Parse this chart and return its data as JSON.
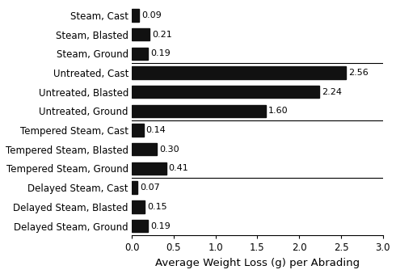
{
  "categories": [
    "Steam, Cast",
    "Steam, Blasted",
    "Steam, Ground",
    "Untreated, Cast",
    "Untreated, Blasted",
    "Untreated, Ground",
    "Tempered Steam, Cast",
    "Tempered Steam, Blasted",
    "Tempered Steam, Ground",
    "Delayed Steam, Cast",
    "Delayed Steam, Blasted",
    "Delayed Steam, Ground"
  ],
  "values": [
    0.09,
    0.21,
    0.19,
    2.56,
    2.24,
    1.6,
    0.14,
    0.3,
    0.41,
    0.07,
    0.15,
    0.19
  ],
  "bar_color": "#111111",
  "xlabel": "Average Weight Loss (g) per Abrading",
  "xlim": [
    0.0,
    3.0
  ],
  "xticks": [
    0.0,
    0.5,
    1.0,
    1.5,
    2.0,
    2.5,
    3.0
  ],
  "bar_height": 0.65,
  "value_fontsize": 8.0,
  "label_fontsize": 8.5,
  "xlabel_fontsize": 9.5,
  "background_color": "#ffffff",
  "separator_indices": [
    3,
    6,
    9
  ]
}
